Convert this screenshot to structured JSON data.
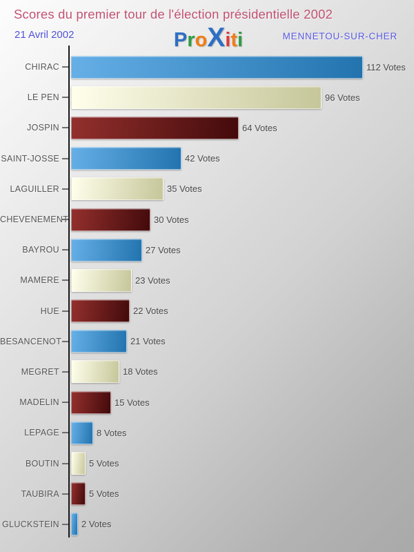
{
  "header": {
    "title": "Scores du premier tour de l'élection présidentielle 2002",
    "date": "21 Avril 2002",
    "location": "MENNETOU-SUR-CHER",
    "logo": {
      "text": "Proxiti",
      "letters": [
        {
          "ch": "P",
          "color": "#2e6fc4",
          "large": false
        },
        {
          "ch": "r",
          "color": "#2f9e44",
          "large": false
        },
        {
          "ch": "o",
          "color": "#f07d16",
          "large": false
        },
        {
          "ch": "X",
          "color": "#2e6fc4",
          "large": true
        },
        {
          "ch": "i",
          "color": "#df3a3a",
          "large": false
        },
        {
          "ch": "t",
          "color": "#f07d16",
          "large": false
        },
        {
          "ch": "i",
          "color": "#2f9e44",
          "large": false
        }
      ]
    }
  },
  "colors": {
    "title_pink": "#c25273",
    "subtitle_blue": "#5454da",
    "axis_black": "#161616",
    "category_label_gray": "#575757",
    "value_label_gray": "#4a4a4a",
    "background_top": "#fdfdfd",
    "background_bottom": "#a9a9a9",
    "bar_blue_light": "#66afe7",
    "bar_blue_dark": "#2273ae",
    "bar_cream_light": "#ffffec",
    "bar_cream_dark": "#c6c69a",
    "bar_red_light": "#93302d",
    "bar_red_dark": "#430a0b"
  },
  "chart_data": {
    "type": "bar",
    "orientation": "horizontal",
    "title": "Scores du premier tour de l'élection présidentielle 2002",
    "subtitle_left": "21 Avril 2002",
    "subtitle_right": "MENNETOU-SUR-CHER",
    "categories": [
      "CHIRAC",
      "LE PEN",
      "JOSPIN",
      "SAINT-JOSSE",
      "LAGUILLER",
      "CHEVENEMENT",
      "BAYROU",
      "MAMERE",
      "HUE",
      "BESANCENOT",
      "MEGRET",
      "MADELIN",
      "LEPAGE",
      "BOUTIN",
      "TAUBIRA",
      "GLUCKSTEIN"
    ],
    "values": [
      112,
      96,
      64,
      42,
      35,
      30,
      27,
      23,
      22,
      21,
      18,
      15,
      8,
      5,
      5,
      2
    ],
    "unit_suffix": "Votes",
    "xlim": [
      0,
      112
    ],
    "bar_color_cycle": [
      "blue",
      "cream",
      "darkred"
    ],
    "grid": false,
    "legend": null,
    "value_labels_shown": true
  }
}
